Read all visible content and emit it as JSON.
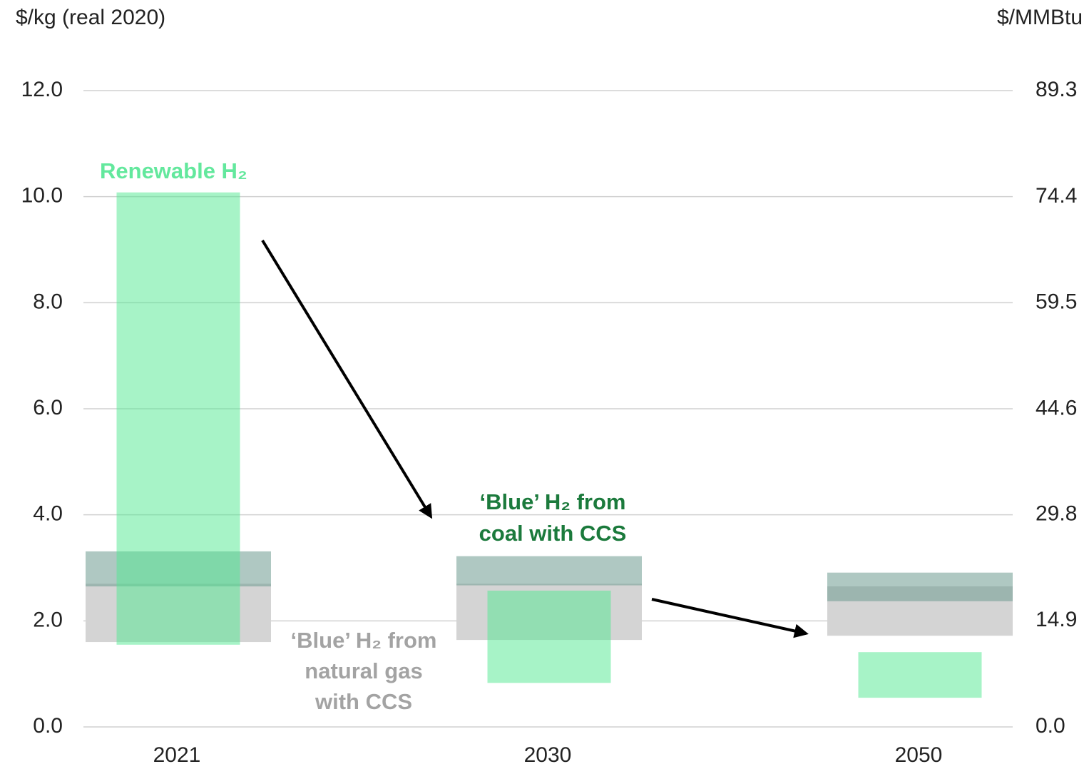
{
  "chart_data": {
    "type": "range_bar",
    "y_axis_label": "$/kg (real 2020)",
    "y2_axis_label": "$/MMBtu",
    "categories": [
      "2021",
      "2030",
      "2050"
    ],
    "ylim": [
      0,
      12
    ],
    "yticks": [
      {
        "value": 0,
        "label": "0.0"
      },
      {
        "value": 2,
        "label": "2.0"
      },
      {
        "value": 4,
        "label": "4.0"
      },
      {
        "value": 6,
        "label": "6.0"
      },
      {
        "value": 8,
        "label": "8.0"
      },
      {
        "value": 10,
        "label": "10.0"
      },
      {
        "value": 12,
        "label": "12.0"
      }
    ],
    "y2lim": [
      0,
      89.3
    ],
    "y2ticks": [
      {
        "value": 0,
        "label": "0.0"
      },
      14.9,
      29.8,
      44.6,
      59.5,
      74.4,
      89.3
    ],
    "grid": true,
    "series": [
      {
        "label_lines": [
          "‘Blue’ H₂ from",
          "natural gas",
          "with CCS"
        ],
        "color": "#d4d4d4",
        "label_color": "#a3a3a3",
        "values": [
          [
            1.6,
            2.7
          ],
          [
            1.64,
            2.7
          ],
          [
            1.72,
            2.65
          ]
        ]
      },
      {
        "label_lines": [
          "‘Blue’ H₂ from",
          "coal with CCS"
        ],
        "color": "#6e9a90",
        "label_color": "#1b7a3c",
        "values": [
          [
            2.65,
            3.31
          ],
          [
            2.67,
            3.22
          ],
          [
            2.37,
            2.91
          ]
        ]
      },
      {
        "label_lines": [
          "Renewable H₂"
        ],
        "color": "#4fe88f",
        "label_color": "#63e89d",
        "values": [
          [
            1.55,
            10.08
          ],
          [
            0.83,
            2.57
          ],
          [
            0.55,
            1.41
          ]
        ]
      }
    ]
  }
}
